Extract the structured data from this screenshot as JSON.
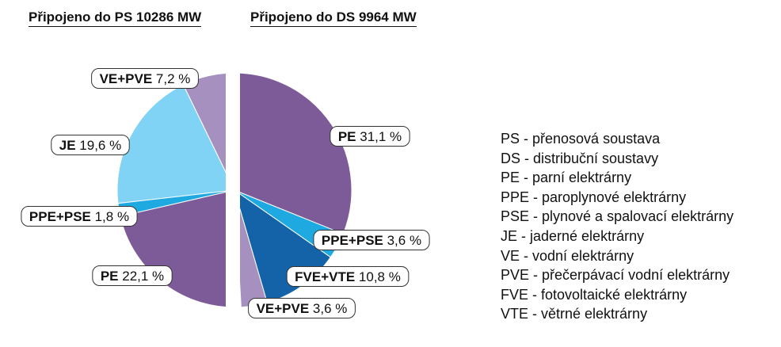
{
  "chart_data": [
    {
      "type": "pie",
      "title": "Připojeno do PS 10286 MW",
      "slices": [
        {
          "label": "VE+PVE",
          "value": 7.2,
          "text": "VE+PVE 7,2 %",
          "color": "#a690bf"
        },
        {
          "label": "JE",
          "value": 19.6,
          "text": "JE 19,6 %",
          "color": "#80d3f5"
        },
        {
          "label": "PPE+PSE",
          "value": 1.8,
          "text": "PPE+PSE 1,8 %",
          "color": "#1fa9e1"
        },
        {
          "label": "PE",
          "value": 22.1,
          "text": "PE 22,1 %",
          "color": "#7d5b98"
        }
      ]
    },
    {
      "type": "pie",
      "title": "Připojeno do DS 9964 MW",
      "slices": [
        {
          "label": "PE",
          "value": 31.1,
          "text": "PE 31,1 %",
          "color": "#7d5b98"
        },
        {
          "label": "PPE+PSE",
          "value": 3.6,
          "text": "PPE+PSE 3,6 %",
          "color": "#1fa9e1"
        },
        {
          "label": "FVE+VTE",
          "value": 10.8,
          "text": "FVE+VTE 10,8 %",
          "color": "#1462a8"
        },
        {
          "label": "VE+PVE",
          "value": 3.6,
          "text": "VE+PVE 3,6 %",
          "color": "#a690bf"
        }
      ]
    }
  ],
  "legend": [
    "PS - přenosová soustava",
    "DS - distribuční soustavy",
    "PE - parní elektrárny",
    "PPE - paroplynové elektrárny",
    "PSE - plynové a spalovací elektrárny",
    "JE - jaderné elektrárny",
    "VE - vodní elektrárny",
    "PVE - přečerpávací vodní elektrárny",
    "FVE - fotovoltaické elektrárny",
    "VTE - větrné elektrárny"
  ]
}
